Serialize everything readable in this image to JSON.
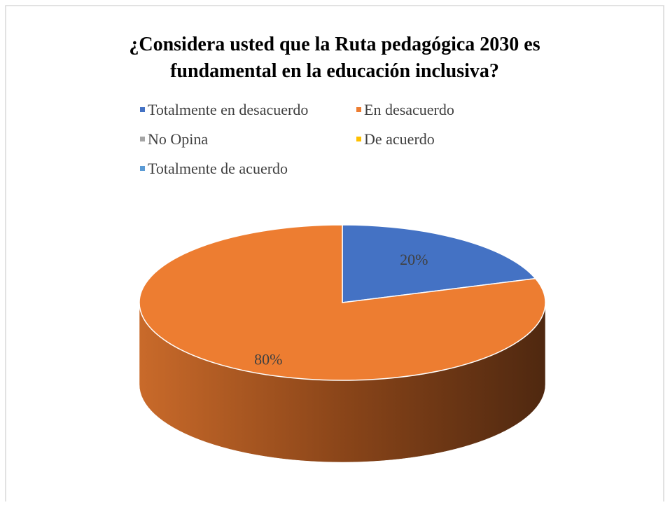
{
  "chart_data": {
    "type": "pie",
    "title": "¿Considera usted que la Ruta pedagógica 2030 es fundamental en la educación inclusiva?",
    "categories": [
      "Totalmente en desacuerdo",
      "En desacuerdo",
      "No Opina",
      "De acuerdo",
      "Totalmente de acuerdo"
    ],
    "values": [
      20,
      80,
      0,
      0,
      0
    ],
    "value_labels": [
      "20%",
      "80%",
      null,
      null,
      null
    ],
    "colors": [
      "#4472c4",
      "#ed7d31",
      "#a5a5a5",
      "#ffc000",
      "#5b9bd5"
    ],
    "legend": "top"
  }
}
